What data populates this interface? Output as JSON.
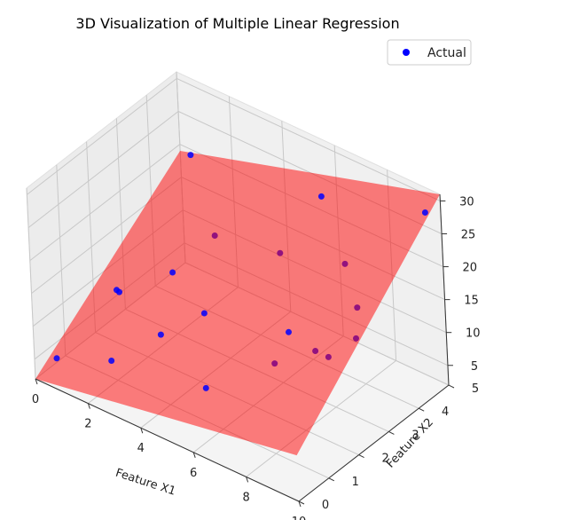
{
  "chart_data": {
    "type": "scatter",
    "projection": "3d",
    "title": "3D Visualization of Multiple Linear Regression",
    "xlabel": "Feature X1",
    "ylabel": "Feature X2",
    "zlabel": "",
    "xlim": [
      0,
      10
    ],
    "ylim": [
      0,
      5
    ],
    "zlim": [
      2,
      31
    ],
    "x_ticks": [
      0,
      2,
      4,
      6,
      8,
      10
    ],
    "y_ticks": [
      0,
      1,
      2,
      3,
      4,
      5
    ],
    "z_ticks": [
      5,
      10,
      15,
      20,
      25,
      30
    ],
    "grid": true,
    "legend": {
      "position": "top-right",
      "entries": [
        "Actual"
      ]
    },
    "colors": {
      "points": "#0000ff",
      "plane": "#ff0000",
      "pane": "#f2f2f2",
      "grid": "#c8c8c8"
    },
    "series": [
      {
        "name": "Actual",
        "points": [
          {
            "x": 0.5,
            "y": 0.3,
            "z": 5
          },
          {
            "x": 2.5,
            "y": 0.4,
            "z": 8
          },
          {
            "x": 3.5,
            "y": 1.2,
            "z": 11
          },
          {
            "x": 1.5,
            "y": 1.5,
            "z": 13
          },
          {
            "x": 4.5,
            "y": 1.8,
            "z": 14
          },
          {
            "x": 6.0,
            "y": 0.5,
            "z": 10
          },
          {
            "x": 2.5,
            "y": 2.5,
            "z": 14
          },
          {
            "x": 1.0,
            "y": 4.5,
            "z": 22
          },
          {
            "x": 7.5,
            "y": 2.0,
            "z": 16
          },
          {
            "x": 5.5,
            "y": 3.5,
            "z": 19
          },
          {
            "x": 8.0,
            "y": 3.5,
            "z": 22
          },
          {
            "x": 9.0,
            "y": 3.0,
            "z": 19
          },
          {
            "x": 9.5,
            "y": 2.5,
            "z": 17
          },
          {
            "x": 9.0,
            "y": 2.0,
            "z": 15
          },
          {
            "x": 8.5,
            "y": 2.0,
            "z": 15
          },
          {
            "x": 7.5,
            "y": 1.5,
            "z": 13
          },
          {
            "x": 1.0,
            "y": 2.0,
            "z": 10
          },
          {
            "x": 3.0,
            "y": 3.5,
            "z": 17
          },
          {
            "x": 6.0,
            "y": 4.5,
            "z": 25
          },
          {
            "x": 10.0,
            "y": 4.5,
            "z": 30
          }
        ]
      }
    ],
    "plane": {
      "z_at_x0_y0": 2,
      "z_at_x10_y0": 9,
      "z_at_x10_y5": 31,
      "z_at_x0_y5": 19
    }
  }
}
